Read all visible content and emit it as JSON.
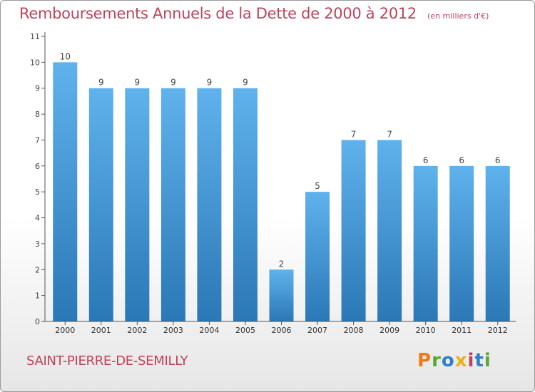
{
  "title": "Remboursements Annuels de la Dette de 2000 à 2012",
  "unit_label": "(en milliers d'€)",
  "commune": "SAINT-PIERRE-DE-SEMILLY",
  "logo": {
    "letters": [
      "P",
      "r",
      "o",
      "x",
      "i",
      "t",
      "i"
    ],
    "colors": [
      "#f07a1a",
      "#5aa832",
      "#2f7fc9",
      "#e8b21a",
      "#c0435a",
      "#2f7fc9",
      "#5aa832"
    ]
  },
  "colors": {
    "bar_top": "#5fb2ec",
    "bar_bottom": "#2a78b6",
    "title": "#c0435a",
    "axis": "#555555"
  },
  "chart_data": {
    "type": "bar",
    "title": "Remboursements Annuels de la Dette de 2000 à 2012",
    "categories": [
      "2000",
      "2001",
      "2002",
      "2003",
      "2004",
      "2005",
      "2006",
      "2007",
      "2008",
      "2009",
      "2010",
      "2011",
      "2012"
    ],
    "values": [
      10,
      9,
      9,
      9,
      9,
      9,
      2,
      5,
      7,
      7,
      6,
      6,
      6
    ],
    "data_labels": [
      "10",
      "9",
      "9",
      "9",
      "9",
      "9",
      "2",
      "5",
      "7",
      "7",
      "6",
      "6",
      "6"
    ],
    "y_ticks": [
      0,
      1,
      2,
      3,
      4,
      5,
      6,
      7,
      8,
      9,
      10,
      11
    ],
    "ylim": [
      0,
      11
    ],
    "xlabel": "",
    "ylabel": "",
    "grid": false,
    "legend": "none"
  }
}
